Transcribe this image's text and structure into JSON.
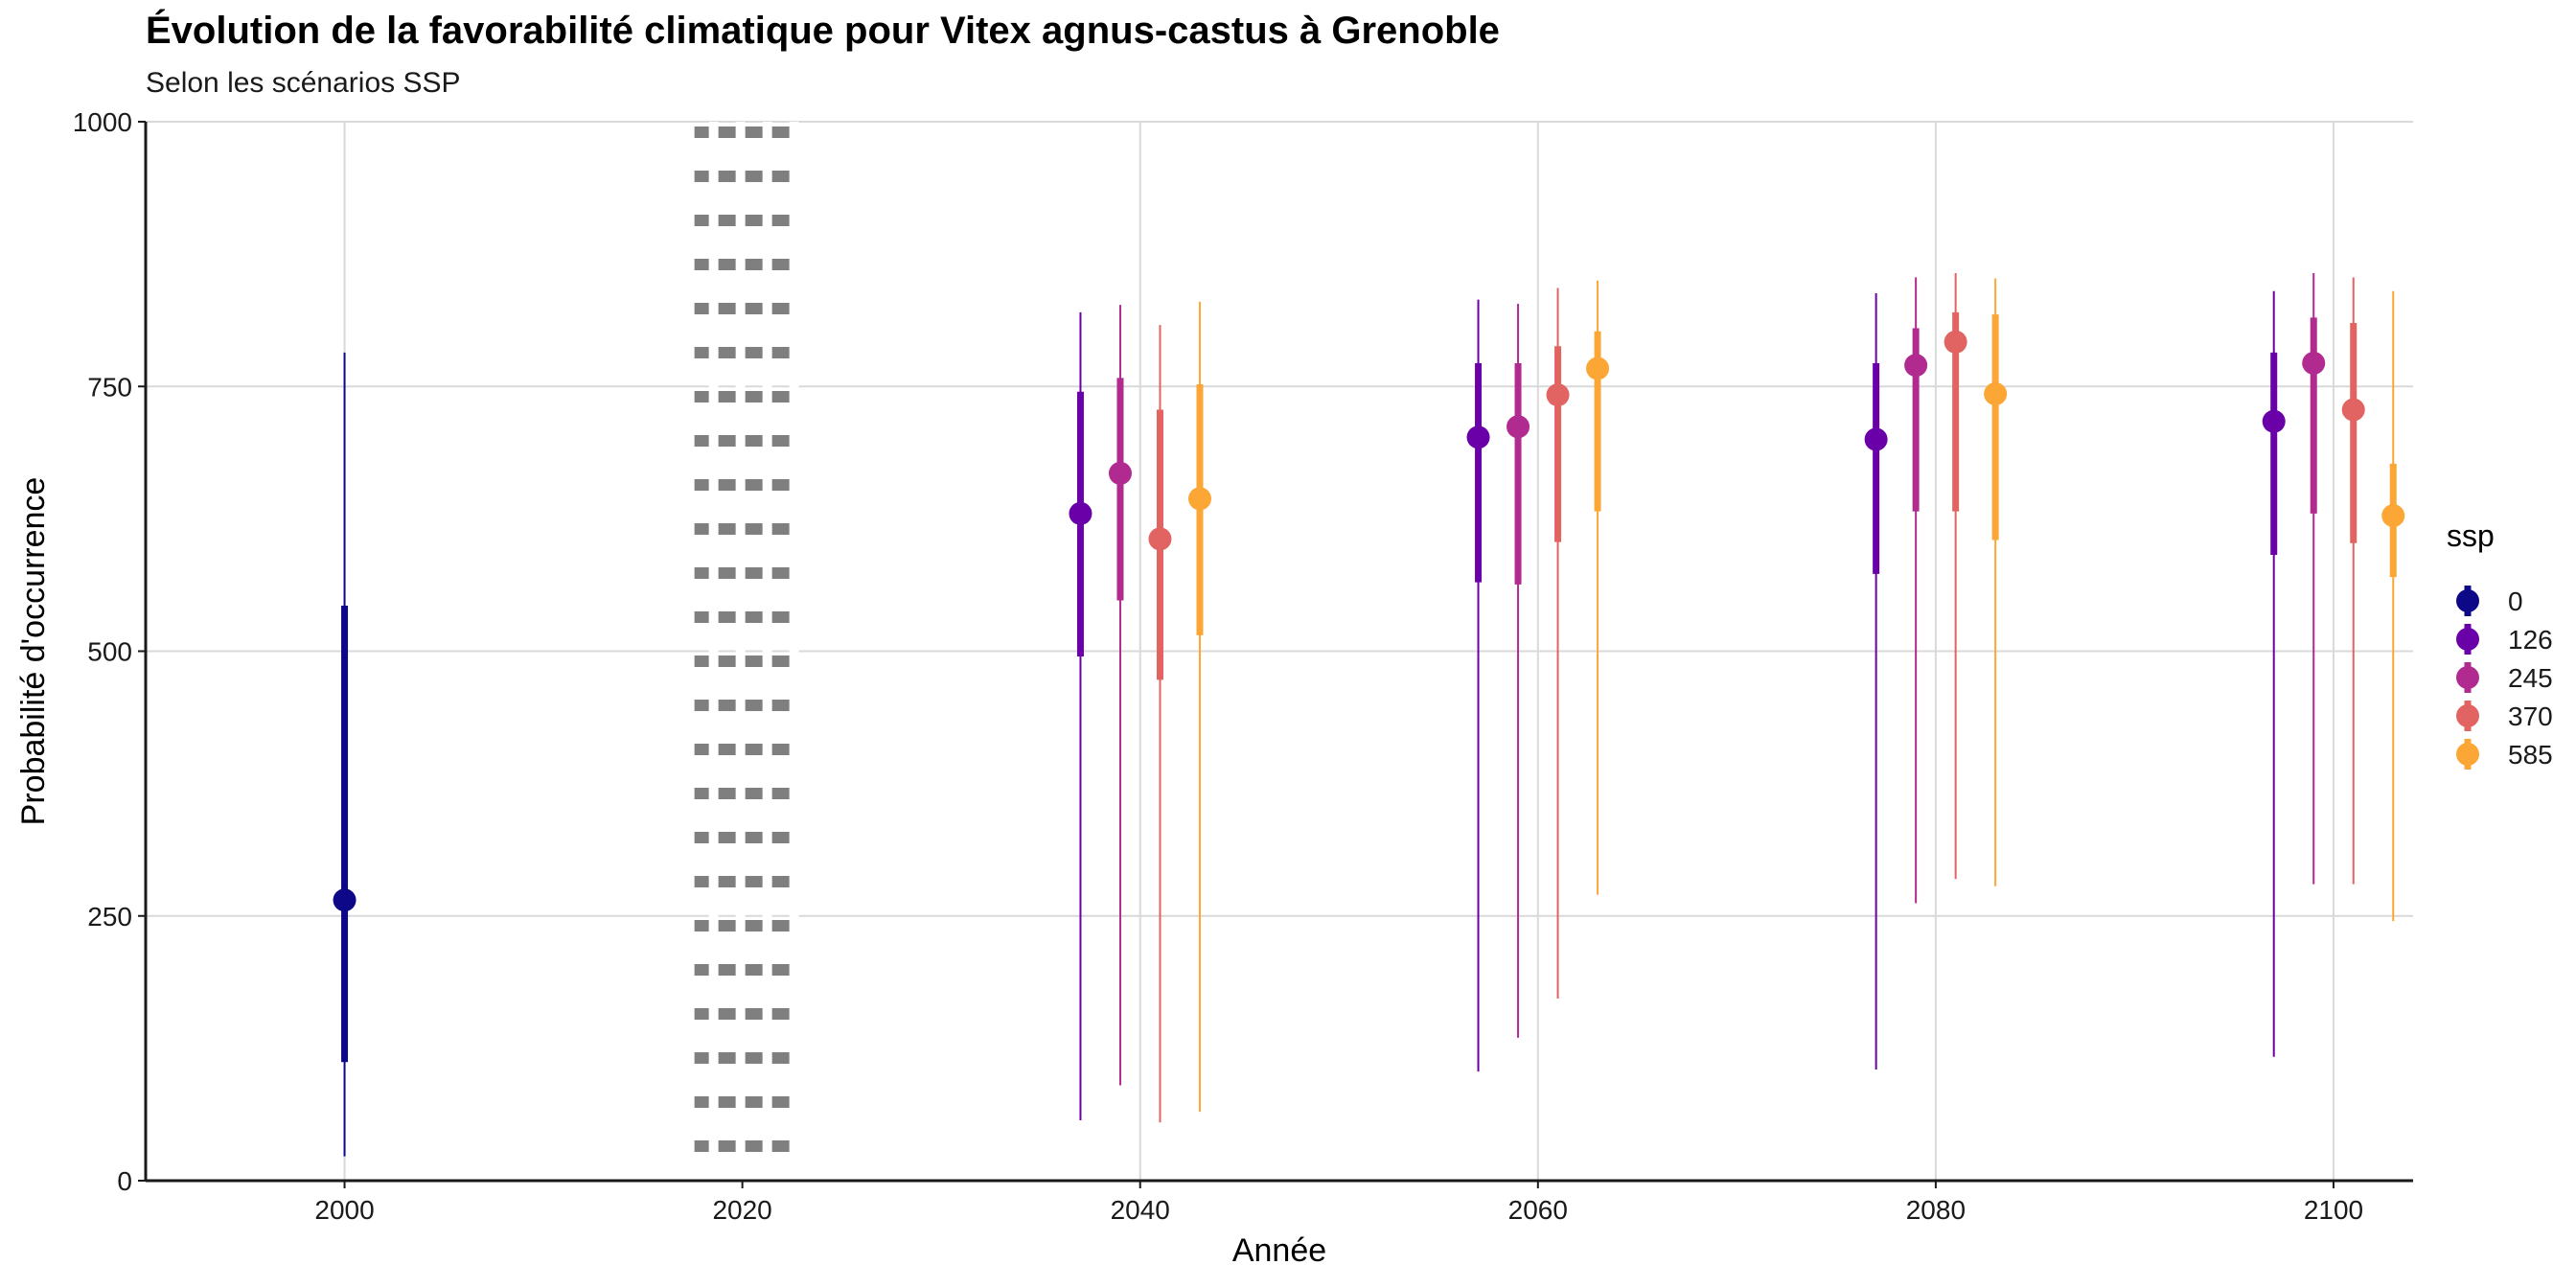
{
  "chart_data": {
    "type": "pointrange",
    "title": "Évolution de la favorabilité climatique pour Vitex agnus-castus à Grenoble",
    "subtitle": "Selon les scénarios SSP",
    "xlabel": "Année",
    "ylabel": "Probabilité d'occurrence",
    "xlim": [
      1990,
      2104
    ],
    "ylim": [
      0,
      1000
    ],
    "x_ticks": [
      "2000",
      "2020",
      "2040",
      "2060",
      "2080",
      "2100"
    ],
    "y_ticks": [
      "0",
      "250",
      "500",
      "750",
      "1000"
    ],
    "grid": true,
    "reference_line": {
      "x": 2020,
      "style": "dotted",
      "color": "#7f7f7f"
    },
    "legend": {
      "title": "ssp",
      "position": "right"
    },
    "series": [
      {
        "name": "0",
        "color": "#0d0887",
        "points": [
          {
            "x": 2000,
            "y": 265,
            "inner": [
              112,
              543
            ],
            "outer": [
              23,
              782
            ]
          }
        ]
      },
      {
        "name": "126",
        "color": "#6a00a8",
        "points": [
          {
            "x": 2037,
            "y": 630,
            "inner": [
              495,
              745
            ],
            "outer": [
              57,
              820
            ]
          },
          {
            "x": 2057,
            "y": 702,
            "inner": [
              565,
              772
            ],
            "outer": [
              103,
              832
            ]
          },
          {
            "x": 2077,
            "y": 700,
            "inner": [
              573,
              772
            ],
            "outer": [
              105,
              838
            ]
          },
          {
            "x": 2097,
            "y": 717,
            "inner": [
              591,
              782
            ],
            "outer": [
              117,
              840
            ]
          }
        ]
      },
      {
        "name": "245",
        "color": "#b12a90",
        "points": [
          {
            "x": 2039,
            "y": 668,
            "inner": [
              548,
              758
            ],
            "outer": [
              90,
              827
            ]
          },
          {
            "x": 2059,
            "y": 712,
            "inner": [
              563,
              772
            ],
            "outer": [
              135,
              828
            ]
          },
          {
            "x": 2079,
            "y": 770,
            "inner": [
              632,
              805
            ],
            "outer": [
              262,
              853
            ]
          },
          {
            "x": 2099,
            "y": 772,
            "inner": [
              630,
              815
            ],
            "outer": [
              280,
              857
            ]
          }
        ]
      },
      {
        "name": "370",
        "color": "#e16462",
        "points": [
          {
            "x": 2041,
            "y": 606,
            "inner": [
              473,
              728
            ],
            "outer": [
              55,
              808
            ]
          },
          {
            "x": 2061,
            "y": 742,
            "inner": [
              603,
              788
            ],
            "outer": [
              172,
              843
            ]
          },
          {
            "x": 2081,
            "y": 792,
            "inner": [
              632,
              820
            ],
            "outer": [
              285,
              857
            ]
          },
          {
            "x": 2101,
            "y": 728,
            "inner": [
              602,
              810
            ],
            "outer": [
              280,
              853
            ]
          }
        ]
      },
      {
        "name": "585",
        "color": "#fca636",
        "points": [
          {
            "x": 2043,
            "y": 644,
            "inner": [
              515,
              752
            ],
            "outer": [
              65,
              830
            ]
          },
          {
            "x": 2063,
            "y": 767,
            "inner": [
              632,
              802
            ],
            "outer": [
              270,
              850
            ]
          },
          {
            "x": 2083,
            "y": 743,
            "inner": [
              605,
              818
            ],
            "outer": [
              278,
              852
            ]
          },
          {
            "x": 2103,
            "y": 628,
            "inner": [
              570,
              677
            ],
            "outer": [
              245,
              840
            ]
          }
        ]
      }
    ]
  }
}
